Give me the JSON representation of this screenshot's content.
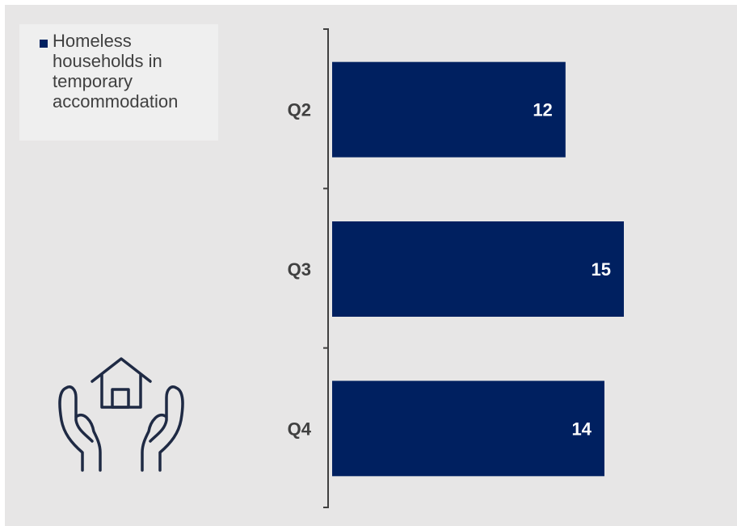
{
  "chart_data": {
    "type": "bar",
    "orientation": "horizontal",
    "categories": [
      "Q2",
      "Q3",
      "Q4"
    ],
    "series": [
      {
        "name": "Homeless households in temporary accommodation",
        "values": [
          12,
          15,
          14
        ]
      }
    ],
    "data_labels": [
      "12",
      "15",
      "14"
    ],
    "title": "",
    "xlabel": "",
    "ylabel": "",
    "xlim": [
      0,
      15.6
    ],
    "grid": false,
    "legend_position": "top-left"
  },
  "legend": {
    "label": "Homeless households in temporary accommodation"
  },
  "icons": {
    "illustration": "hands-holding-house-icon"
  },
  "colors": {
    "bar": "#002060",
    "background": "#e7e6e6",
    "axis": "#404040",
    "label_text": "#404040",
    "value_text": "#ffffff"
  }
}
